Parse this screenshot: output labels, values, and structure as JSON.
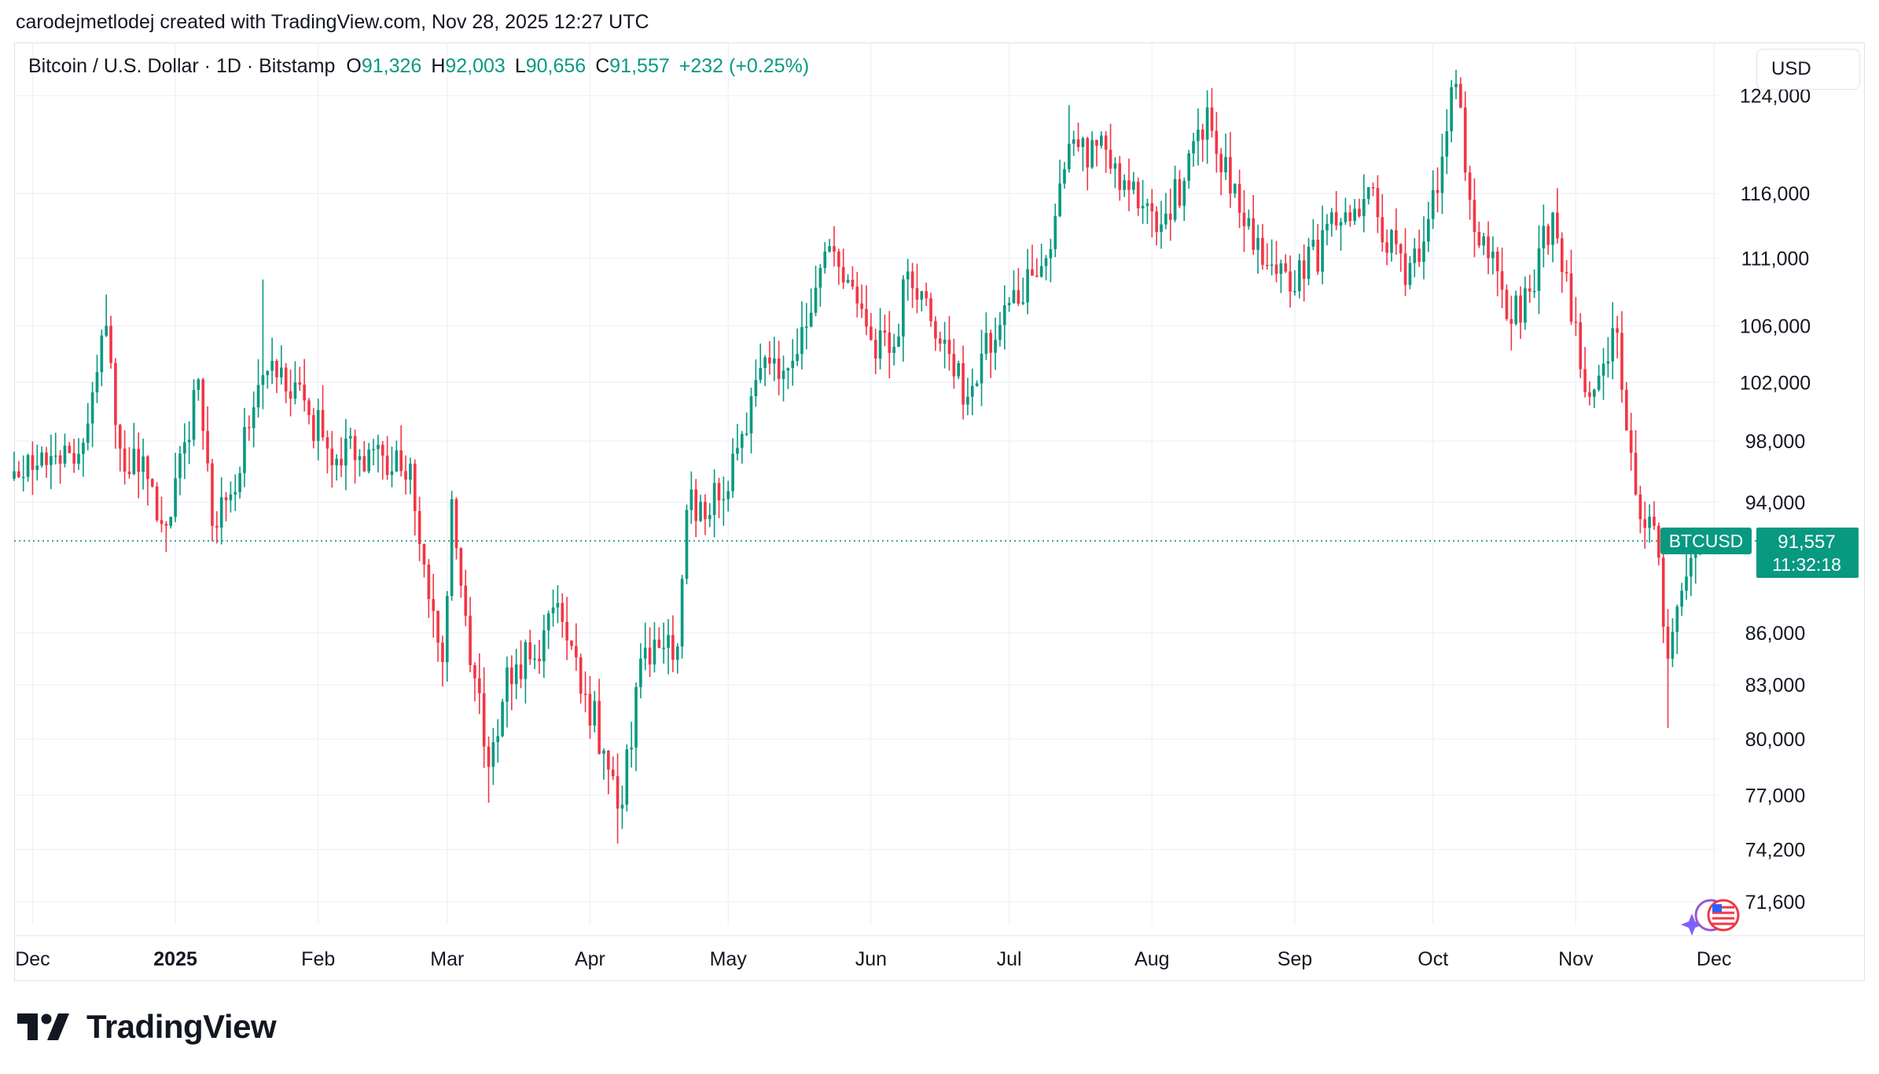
{
  "credit": "carodejmetlodej created with TradingView.com, Nov 28, 2025 12:27 UTC",
  "legend": {
    "symbol": "Bitcoin / U.S. Dollar · 1D · Bitstamp",
    "open_label": "O",
    "open": "91,326",
    "high_label": "H",
    "high": "92,003",
    "low_label": "L",
    "low": "90,656",
    "close_label": "C",
    "close": "91,557",
    "change": "+232 (+0.25%)"
  },
  "currency": "USD",
  "price_tag": {
    "ticker": "BTCUSD",
    "price": "91,557",
    "countdown": "11:32:18"
  },
  "brand": "TradingView",
  "colors": {
    "up": "#089981",
    "down": "#f23645",
    "grid": "#f0f3fa",
    "text": "#131722",
    "axis": "#e0e3eb"
  },
  "chart_data": {
    "type": "candlestick",
    "title": "Bitcoin / U.S. Dollar · 1D · Bitstamp",
    "scale": "logarithmic",
    "ylim": [
      70500,
      128500
    ],
    "y_ticks": [
      {
        "value": 124000,
        "label": "124,000"
      },
      {
        "value": 116000,
        "label": "116,000"
      },
      {
        "value": 111000,
        "label": "111,000"
      },
      {
        "value": 106000,
        "label": "106,000"
      },
      {
        "value": 102000,
        "label": "102,000"
      },
      {
        "value": 98000,
        "label": "98,000"
      },
      {
        "value": 94000,
        "label": "94,000"
      },
      {
        "value": 86000,
        "label": "86,000"
      },
      {
        "value": 83000,
        "label": "83,000"
      },
      {
        "value": 80000,
        "label": "80,000"
      },
      {
        "value": 77000,
        "label": "77,000"
      },
      {
        "value": 74200,
        "label": "74,200"
      },
      {
        "value": 71600,
        "label": "71,600"
      }
    ],
    "x_start": "2024-11-27",
    "x_end": "2025-12-02",
    "x_ticks": [
      {
        "date": "2024-12-01",
        "label": "Dec",
        "bold": false
      },
      {
        "date": "2025-01-01",
        "label": "2025",
        "bold": true
      },
      {
        "date": "2025-02-01",
        "label": "Feb",
        "bold": false
      },
      {
        "date": "2025-03-01",
        "label": "Mar",
        "bold": false
      },
      {
        "date": "2025-04-01",
        "label": "Apr",
        "bold": false
      },
      {
        "date": "2025-05-01",
        "label": "May",
        "bold": false
      },
      {
        "date": "2025-06-01",
        "label": "Jun",
        "bold": false
      },
      {
        "date": "2025-07-01",
        "label": "Jul",
        "bold": false
      },
      {
        "date": "2025-08-01",
        "label": "Aug",
        "bold": false
      },
      {
        "date": "2025-09-01",
        "label": "Sep",
        "bold": false
      },
      {
        "date": "2025-10-01",
        "label": "Oct",
        "bold": false
      },
      {
        "date": "2025-11-01",
        "label": "Nov",
        "bold": false
      },
      {
        "date": "2025-12-01",
        "label": "Dec",
        "bold": false
      }
    ],
    "last_price": 91557,
    "close_anchors": [
      {
        "date": "2024-11-27",
        "close": 96000
      },
      {
        "date": "2024-12-05",
        "close": 97000
      },
      {
        "date": "2024-12-10",
        "close": 96500
      },
      {
        "date": "2024-12-17",
        "close": 106000
      },
      {
        "date": "2024-12-20",
        "close": 97500
      },
      {
        "date": "2024-12-26",
        "close": 95500
      },
      {
        "date": "2024-12-30",
        "close": 92500
      },
      {
        "date": "2025-01-06",
        "close": 102200
      },
      {
        "date": "2025-01-09",
        "close": 92500
      },
      {
        "date": "2025-01-13",
        "close": 94500
      },
      {
        "date": "2025-01-20",
        "close": 102500
      },
      {
        "date": "2025-01-22",
        "close": 103500
      },
      {
        "date": "2025-01-27",
        "close": 102000
      },
      {
        "date": "2025-02-03",
        "close": 97500
      },
      {
        "date": "2025-02-10",
        "close": 97000
      },
      {
        "date": "2025-02-17",
        "close": 96000
      },
      {
        "date": "2025-02-21",
        "close": 96500
      },
      {
        "date": "2025-02-25",
        "close": 88000
      },
      {
        "date": "2025-02-28",
        "close": 84300
      },
      {
        "date": "2025-03-02",
        "close": 94200
      },
      {
        "date": "2025-03-05",
        "close": 87000
      },
      {
        "date": "2025-03-10",
        "close": 78500
      },
      {
        "date": "2025-03-14",
        "close": 84000
      },
      {
        "date": "2025-03-20",
        "close": 84500
      },
      {
        "date": "2025-03-24",
        "close": 87500
      },
      {
        "date": "2025-03-31",
        "close": 82500
      },
      {
        "date": "2025-04-06",
        "close": 78000
      },
      {
        "date": "2025-04-08",
        "close": 76500
      },
      {
        "date": "2025-04-12",
        "close": 84500
      },
      {
        "date": "2025-04-20",
        "close": 85200
      },
      {
        "date": "2025-04-22",
        "close": 93500
      },
      {
        "date": "2025-04-30",
        "close": 94200
      },
      {
        "date": "2025-05-08",
        "close": 103000
      },
      {
        "date": "2025-05-15",
        "close": 103500
      },
      {
        "date": "2025-05-22",
        "close": 111500
      },
      {
        "date": "2025-06-01",
        "close": 105000
      },
      {
        "date": "2025-06-06",
        "close": 104500
      },
      {
        "date": "2025-06-09",
        "close": 110000
      },
      {
        "date": "2025-06-17",
        "close": 105000
      },
      {
        "date": "2025-06-22",
        "close": 101000
      },
      {
        "date": "2025-06-30",
        "close": 107500
      },
      {
        "date": "2025-07-09",
        "close": 111000
      },
      {
        "date": "2025-07-14",
        "close": 120000
      },
      {
        "date": "2025-07-22",
        "close": 119500
      },
      {
        "date": "2025-08-02",
        "close": 113000
      },
      {
        "date": "2025-08-08",
        "close": 117000
      },
      {
        "date": "2025-08-13",
        "close": 123000
      },
      {
        "date": "2025-08-18",
        "close": 116000
      },
      {
        "date": "2025-08-25",
        "close": 110500
      },
      {
        "date": "2025-08-31",
        "close": 108500
      },
      {
        "date": "2025-09-10",
        "close": 113500
      },
      {
        "date": "2025-09-17",
        "close": 116500
      },
      {
        "date": "2025-09-25",
        "close": 109000
      },
      {
        "date": "2025-09-30",
        "close": 114000
      },
      {
        "date": "2025-10-06",
        "close": 125000
      },
      {
        "date": "2025-10-10",
        "close": 113000
      },
      {
        "date": "2025-10-14",
        "close": 111500
      },
      {
        "date": "2025-10-17",
        "close": 106500
      },
      {
        "date": "2025-10-22",
        "close": 108500
      },
      {
        "date": "2025-10-27",
        "close": 114500
      },
      {
        "date": "2025-11-04",
        "close": 101000
      },
      {
        "date": "2025-11-10",
        "close": 105500
      },
      {
        "date": "2025-11-14",
        "close": 94500
      },
      {
        "date": "2025-11-18",
        "close": 92500
      },
      {
        "date": "2025-11-21",
        "close": 84500
      },
      {
        "date": "2025-11-24",
        "close": 88500
      },
      {
        "date": "2025-11-26",
        "close": 90500
      },
      {
        "date": "2025-11-28",
        "close": 91557
      }
    ],
    "extreme_wicks": [
      {
        "date": "2025-04-07",
        "low": 74500
      },
      {
        "date": "2025-03-10",
        "low": 76600
      },
      {
        "date": "2025-11-21",
        "low": 80600
      },
      {
        "date": "2025-10-06",
        "high": 126200
      },
      {
        "date": "2025-08-14",
        "high": 124400
      },
      {
        "date": "2025-07-14",
        "high": 123200
      },
      {
        "date": "2024-12-17",
        "high": 108300
      },
      {
        "date": "2025-01-20",
        "high": 109400
      }
    ]
  }
}
